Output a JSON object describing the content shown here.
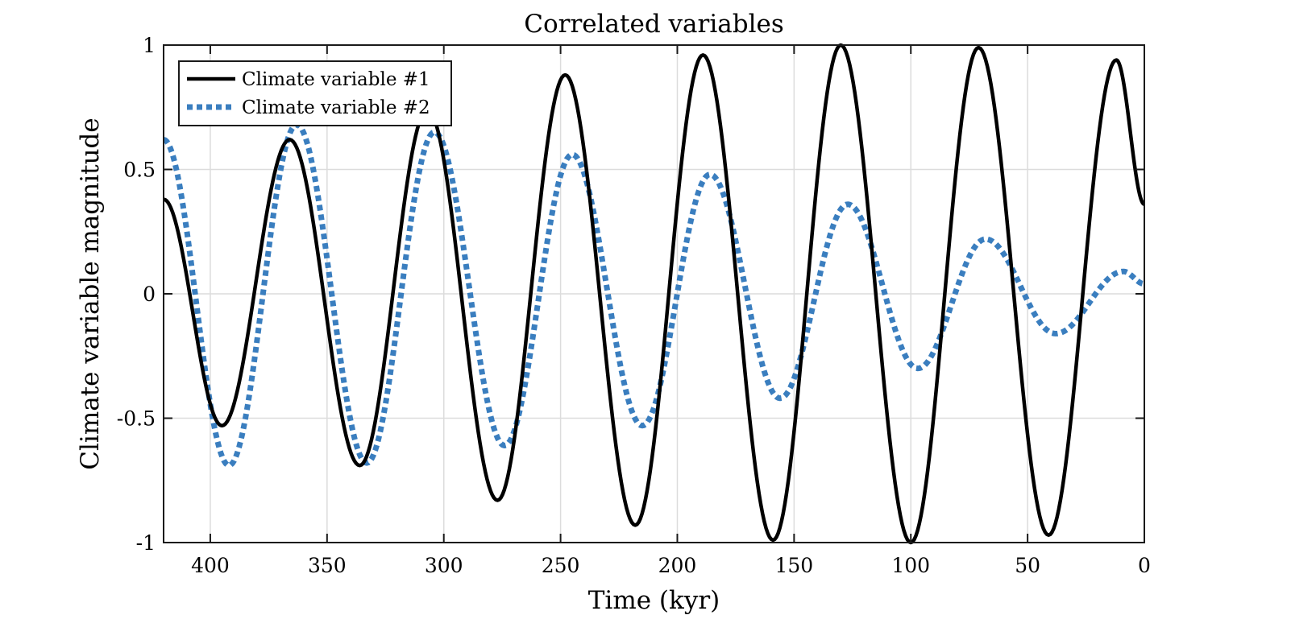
{
  "chart_data": {
    "type": "line",
    "title": "Correlated variables",
    "xlabel": "Time (kyr)",
    "ylabel": "Climate variable magnitude",
    "xlim": [
      420,
      0
    ],
    "x_reversed": true,
    "ylim": [
      -1,
      1
    ],
    "grid": true,
    "legend_position": "top-left",
    "x_ticks": [
      400,
      350,
      300,
      250,
      200,
      150,
      100,
      50,
      0
    ],
    "x_tick_labels": [
      "400",
      "350",
      "300",
      "250",
      "200",
      "150",
      "100",
      "50",
      "0"
    ],
    "y_ticks": [
      -1,
      -0.5,
      0,
      0.5,
      1
    ],
    "y_tick_labels": [
      "-1",
      "-0.5",
      "0",
      "0.5",
      "1"
    ],
    "series": [
      {
        "name": "Climate variable #1",
        "color": "#000000",
        "style": "solid",
        "x": [
          420,
          395,
          366,
          336,
          307,
          277,
          248,
          218,
          189,
          159,
          130,
          100,
          71,
          41,
          12,
          0
        ],
        "y": [
          0.38,
          -0.53,
          0.62,
          -0.69,
          0.74,
          -0.83,
          0.88,
          -0.93,
          0.96,
          -0.99,
          1.0,
          -1.0,
          0.99,
          -0.97,
          0.94,
          0.36
        ]
      },
      {
        "name": "Climate variable #2",
        "color": "#3a7ebf",
        "style": "dotted",
        "x": [
          420,
          392,
          363,
          333,
          304,
          274,
          245,
          215,
          186,
          156,
          127,
          97,
          68,
          38,
          9,
          0
        ],
        "y": [
          0.62,
          -0.69,
          0.68,
          -0.68,
          0.65,
          -0.61,
          0.56,
          -0.53,
          0.48,
          -0.42,
          0.36,
          -0.3,
          0.22,
          -0.16,
          0.09,
          0.04
        ]
      }
    ]
  }
}
